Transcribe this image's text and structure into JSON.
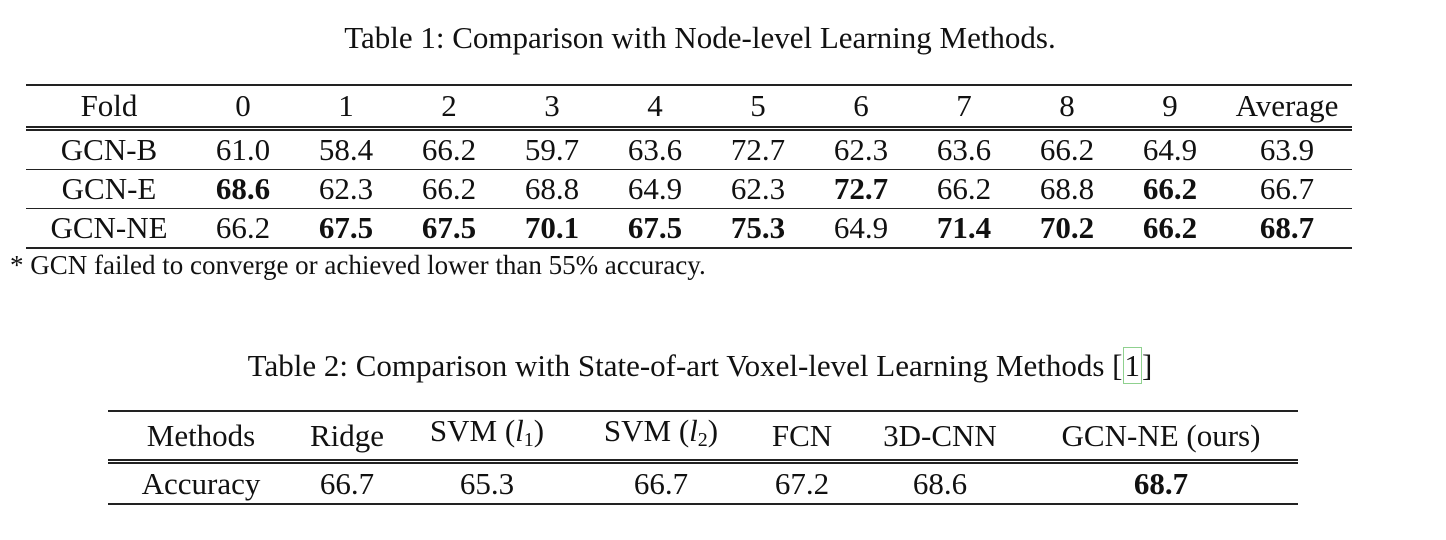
{
  "table1": {
    "caption": "Table 1: Comparison with Node-level Learning Methods.",
    "headers": [
      "Fold",
      "0",
      "1",
      "2",
      "3",
      "4",
      "5",
      "6",
      "7",
      "8",
      "9",
      "Average"
    ],
    "rows": [
      {
        "method": "GCN-B",
        "values": [
          "61.0",
          "58.4",
          "66.2",
          "59.7",
          "63.6",
          "72.7",
          "62.3",
          "63.6",
          "66.2",
          "64.9",
          "63.9"
        ],
        "bold": [
          false,
          false,
          false,
          false,
          false,
          false,
          false,
          false,
          false,
          false,
          false
        ]
      },
      {
        "method": "GCN-E",
        "values": [
          "68.6",
          "62.3",
          "66.2",
          "68.8",
          "64.9",
          "62.3",
          "72.7",
          "66.2",
          "68.8",
          "66.2",
          "66.7"
        ],
        "bold": [
          true,
          false,
          false,
          false,
          false,
          false,
          true,
          false,
          false,
          true,
          false
        ]
      },
      {
        "method": "GCN-NE",
        "values": [
          "66.2",
          "67.5",
          "67.5",
          "70.1",
          "67.5",
          "75.3",
          "64.9",
          "71.4",
          "70.2",
          "66.2",
          "68.7"
        ],
        "bold": [
          false,
          true,
          true,
          true,
          true,
          true,
          false,
          true,
          true,
          true,
          true
        ]
      }
    ],
    "footnote": "* GCN failed to converge or achieved lower than 55% accuracy."
  },
  "table2": {
    "caption_text": "Table 2: Comparison with State-of-art Voxel-level Learning Methods ",
    "caption_open": "[",
    "caption_cite": "1",
    "caption_close": "]",
    "headers": {
      "methods": "Methods",
      "ridge": "Ridge",
      "svm1_prefix": "SVM (",
      "svm1_var": "l",
      "svm1_sub": "1",
      "svm1_suffix": ")",
      "svm2_prefix": "SVM (",
      "svm2_var": "l",
      "svm2_sub": "2",
      "svm2_suffix": ")",
      "fcn": "FCN",
      "cnn3d": "3D-CNN",
      "gcn_ne": "GCN-NE (ours)"
    },
    "row": {
      "label": "Accuracy",
      "ridge": "66.7",
      "svm1": "65.3",
      "svm2": "66.7",
      "fcn": "67.2",
      "cnn3d": "68.6",
      "gcn_ne": "68.7"
    }
  }
}
